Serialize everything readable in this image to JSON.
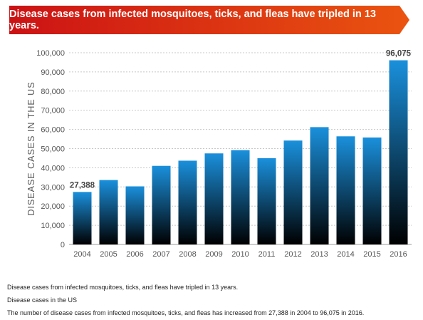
{
  "banner": {
    "title": "Disease cases from infected mosquitoes, ticks, and fleas have tripled in 13 years.",
    "colors": [
      "#cc1214",
      "#ea5410"
    ]
  },
  "chart_data": {
    "type": "bar",
    "categories": [
      "2004",
      "2005",
      "2006",
      "2007",
      "2008",
      "2009",
      "2010",
      "2011",
      "2012",
      "2013",
      "2014",
      "2015",
      "2016"
    ],
    "values": [
      27388,
      33600,
      30300,
      41000,
      43700,
      47500,
      49200,
      45000,
      54200,
      61200,
      56400,
      55800,
      96075
    ],
    "data_labels": [
      {
        "category": "2004",
        "text": "27,388"
      },
      {
        "category": "2016",
        "text": "96,075"
      }
    ],
    "ylabel": "DISEASE CASES IN THE US",
    "xlabel": "",
    "ylim": [
      0,
      100000
    ],
    "yticks": [
      {
        "value": 0,
        "label": "0"
      },
      {
        "value": 10000,
        "label": "10,000"
      },
      {
        "value": 20000,
        "label": "20,000"
      },
      {
        "value": 30000,
        "label": "30,000"
      },
      {
        "value": 40000,
        "label": "40,000"
      },
      {
        "value": 50000,
        "label": "50,000"
      },
      {
        "value": 60000,
        "label": "60,000"
      },
      {
        "value": 70000,
        "label": "70,000"
      },
      {
        "value": 80000,
        "label": "80,000"
      },
      {
        "value": 90000,
        "label": "90,000"
      },
      {
        "value": 100000,
        "label": "100,000"
      }
    ],
    "grid": true,
    "bar_gradient": [
      "#1a90dc",
      "#000000"
    ]
  },
  "captions": {
    "line1": "Disease cases from infected mosquitoes, ticks, and fleas have tripled in 13 years.",
    "line2": "Disease cases in the US",
    "line3": "The number of disease cases from infected mosquitoes, ticks, and fleas has increased from 27,388 in 2004 to 96,075 in 2016."
  }
}
